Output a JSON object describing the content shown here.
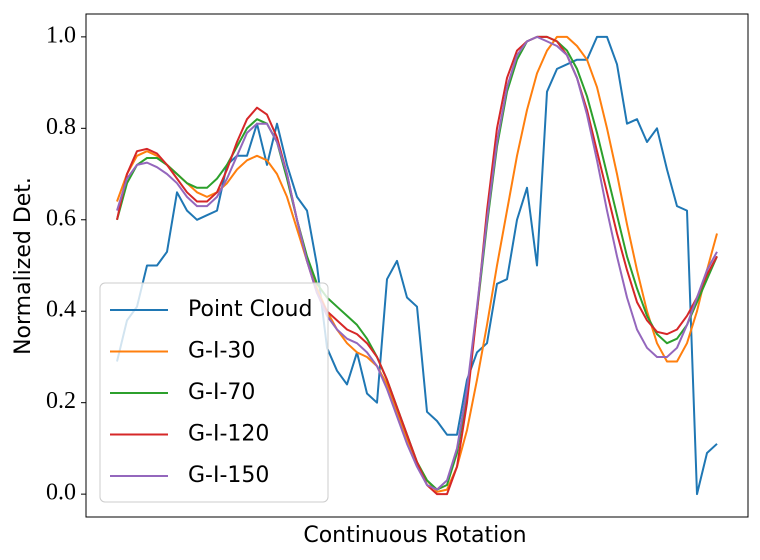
{
  "chart_data": {
    "type": "line",
    "xlabel": "Continuous Rotation",
    "ylabel": "Normalized Det.",
    "categories": [
      null,
      null,
      null,
      null,
      null,
      null,
      null,
      null,
      null,
      null,
      null,
      null,
      null,
      null,
      null,
      null,
      null,
      null,
      null,
      null,
      null,
      null,
      null,
      null,
      null,
      null,
      null,
      null,
      null,
      null,
      null,
      null,
      null,
      null,
      null,
      null,
      null,
      null,
      null,
      null,
      null,
      null,
      null,
      null,
      null,
      null,
      null,
      null,
      null,
      null,
      null,
      null,
      null,
      null,
      null,
      null,
      null,
      null,
      null,
      null,
      null
    ],
    "ylim": [
      -0.05,
      1.05
    ],
    "yticks": [
      {
        "value": 0,
        "label": "0.0"
      },
      0.2,
      0.4,
      0.6,
      0.8,
      {
        "value": 1,
        "label": "1.0"
      }
    ],
    "legend": "lower left",
    "series": [
      {
        "name": "Point Cloud",
        "color": "#1f77b4",
        "values": [
          0.29,
          0.38,
          0.41,
          0.5,
          0.5,
          0.53,
          0.66,
          0.62,
          0.6,
          0.61,
          0.62,
          0.72,
          0.74,
          0.74,
          0.81,
          0.72,
          0.81,
          0.72,
          0.65,
          0.62,
          0.5,
          0.32,
          0.27,
          0.24,
          0.31,
          0.22,
          0.2,
          0.47,
          0.51,
          0.43,
          0.41,
          0.18,
          0.16,
          0.13,
          0.13,
          0.25,
          0.31,
          0.33,
          0.46,
          0.47,
          0.6,
          0.67,
          0.5,
          0.88,
          0.93,
          0.94,
          0.95,
          0.95,
          1.0,
          1.0,
          0.94,
          0.81,
          0.82,
          0.77,
          0.8,
          0.71,
          0.63,
          0.62,
          0.0,
          0.09,
          0.11
        ]
      },
      {
        "name": "G-I-30",
        "color": "#ff7f0e",
        "values": [
          0.64,
          0.7,
          0.74,
          0.75,
          0.74,
          0.72,
          0.7,
          0.68,
          0.66,
          0.65,
          0.66,
          0.68,
          0.71,
          0.73,
          0.74,
          0.73,
          0.7,
          0.65,
          0.58,
          0.51,
          0.45,
          0.4,
          0.36,
          0.33,
          0.31,
          0.3,
          0.28,
          0.24,
          0.18,
          0.12,
          0.07,
          0.03,
          0.005,
          0.01,
          0.06,
          0.14,
          0.25,
          0.37,
          0.5,
          0.62,
          0.74,
          0.84,
          0.92,
          0.97,
          1.0,
          1.0,
          0.98,
          0.95,
          0.89,
          0.8,
          0.7,
          0.59,
          0.49,
          0.4,
          0.33,
          0.29,
          0.29,
          0.33,
          0.4,
          0.49,
          0.57
        ]
      },
      {
        "name": "G-I-70",
        "color": "#2ca02c",
        "values": [
          0.6,
          0.68,
          0.72,
          0.735,
          0.735,
          0.72,
          0.7,
          0.68,
          0.67,
          0.67,
          0.69,
          0.72,
          0.76,
          0.8,
          0.82,
          0.81,
          0.77,
          0.69,
          0.6,
          0.52,
          0.46,
          0.43,
          0.41,
          0.39,
          0.37,
          0.34,
          0.3,
          0.25,
          0.19,
          0.13,
          0.07,
          0.03,
          0.01,
          0.02,
          0.09,
          0.22,
          0.4,
          0.59,
          0.76,
          0.88,
          0.95,
          0.99,
          1.0,
          1.0,
          0.99,
          0.97,
          0.93,
          0.87,
          0.79,
          0.7,
          0.61,
          0.52,
          0.45,
          0.39,
          0.35,
          0.33,
          0.34,
          0.37,
          0.42,
          0.47,
          0.52
        ]
      },
      {
        "name": "G-I-120",
        "color": "#d62728",
        "values": [
          0.6,
          0.7,
          0.75,
          0.755,
          0.745,
          0.72,
          0.69,
          0.66,
          0.64,
          0.64,
          0.66,
          0.71,
          0.77,
          0.82,
          0.845,
          0.83,
          0.78,
          0.7,
          0.6,
          0.51,
          0.44,
          0.4,
          0.38,
          0.36,
          0.35,
          0.33,
          0.3,
          0.25,
          0.19,
          0.13,
          0.07,
          0.02,
          0.0,
          0.0,
          0.06,
          0.2,
          0.4,
          0.62,
          0.8,
          0.91,
          0.97,
          0.99,
          1.0,
          1.0,
          0.99,
          0.96,
          0.91,
          0.84,
          0.75,
          0.66,
          0.57,
          0.49,
          0.42,
          0.38,
          0.355,
          0.35,
          0.36,
          0.39,
          0.43,
          0.48,
          0.52
        ]
      },
      {
        "name": "G-I-150",
        "color": "#9467bd",
        "values": [
          0.62,
          0.69,
          0.72,
          0.725,
          0.715,
          0.7,
          0.68,
          0.65,
          0.63,
          0.63,
          0.65,
          0.69,
          0.74,
          0.79,
          0.81,
          0.81,
          0.77,
          0.7,
          0.6,
          0.51,
          0.44,
          0.39,
          0.36,
          0.34,
          0.33,
          0.31,
          0.28,
          0.23,
          0.17,
          0.11,
          0.06,
          0.02,
          0.01,
          0.03,
          0.1,
          0.23,
          0.41,
          0.6,
          0.77,
          0.89,
          0.96,
          0.99,
          1.0,
          0.99,
          0.98,
          0.96,
          0.91,
          0.83,
          0.73,
          0.62,
          0.52,
          0.43,
          0.36,
          0.32,
          0.3,
          0.3,
          0.32,
          0.37,
          0.43,
          0.49,
          0.53
        ]
      }
    ]
  }
}
